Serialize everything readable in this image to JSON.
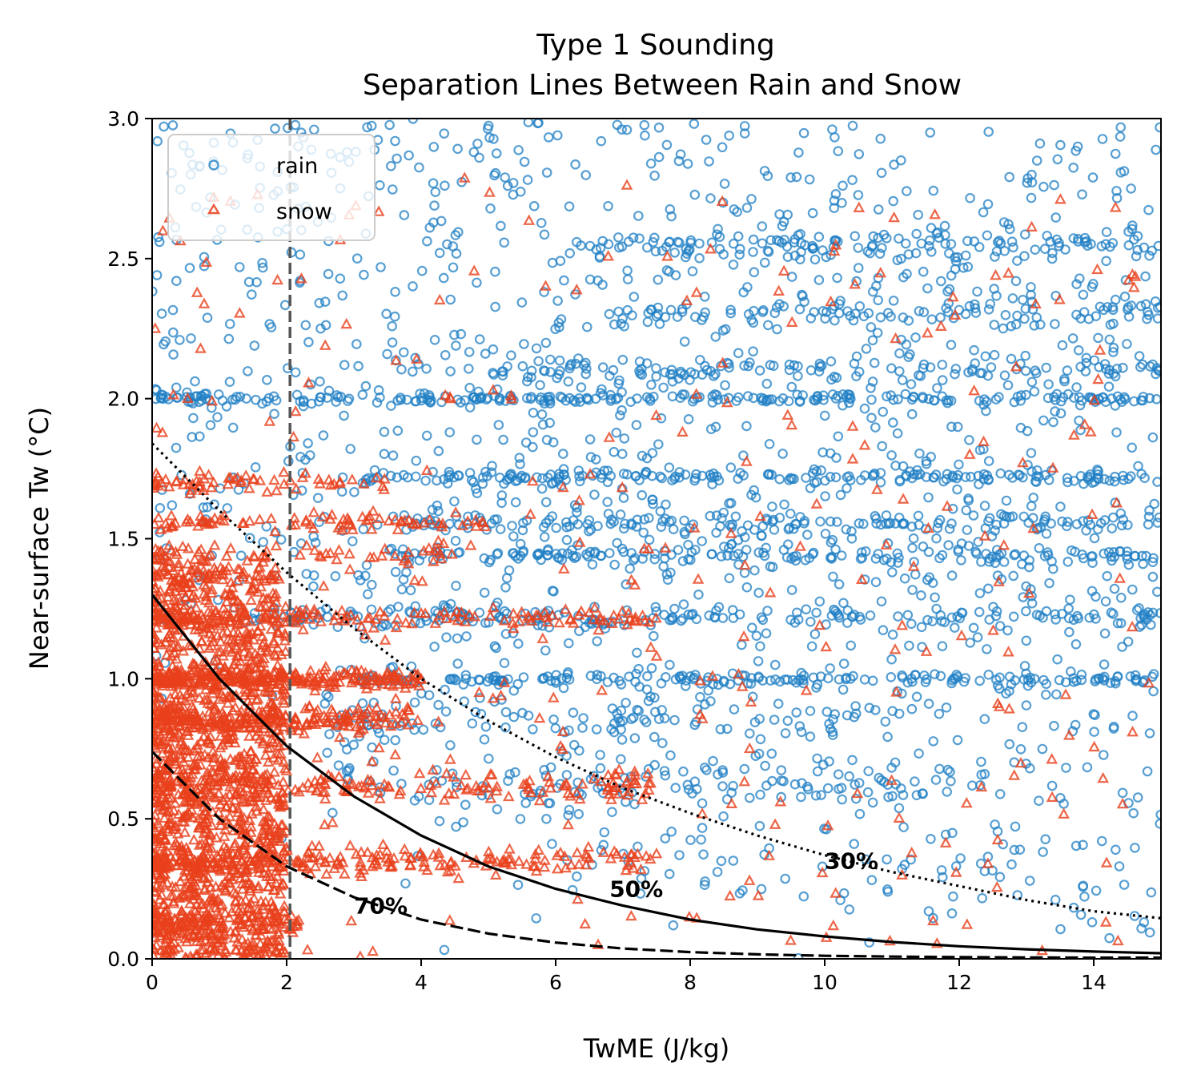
{
  "chart_data": {
    "type": "scatter",
    "title": "Type 1 Sounding",
    "subtitle": "Separation Lines Between Rain and Snow",
    "xlabel": "TwME (J/kg)",
    "ylabel": "Near-surface Tw (°C)",
    "xlim": [
      0,
      15
    ],
    "ylim": [
      0,
      3.0
    ],
    "xticks": [
      0,
      2,
      4,
      6,
      8,
      10,
      12,
      14
    ],
    "xtick_labels": [
      "0",
      "2",
      "4",
      "6",
      "8",
      "10",
      "12",
      "14"
    ],
    "yticks": [
      0,
      0.5,
      1.0,
      1.5,
      2.0,
      2.5,
      3.0
    ],
    "ytick_labels": [
      "0.0",
      "0.5",
      "1.0",
      "1.5",
      "2.0",
      "2.5",
      "3.0"
    ],
    "grid": false,
    "legend": {
      "position": "top-left",
      "entries": [
        {
          "label": "rain",
          "marker": "circle",
          "color": "#1f7fc4"
        },
        {
          "label": "snow",
          "marker": "triangle",
          "color": "#e8401c"
        }
      ]
    },
    "vertical_line": {
      "x": 2.05,
      "style": "dashed",
      "color": "#555555"
    },
    "curves": [
      {
        "label": "30%",
        "style": "dotted",
        "color": "#000000",
        "points": [
          [
            0,
            1.84
          ],
          [
            1,
            1.6
          ],
          [
            2,
            1.38
          ],
          [
            3,
            1.18
          ],
          [
            4,
            1.0
          ],
          [
            5,
            0.85
          ],
          [
            6,
            0.72
          ],
          [
            7,
            0.61
          ],
          [
            8,
            0.52
          ],
          [
            9,
            0.44
          ],
          [
            10,
            0.37
          ],
          [
            11,
            0.31
          ],
          [
            12,
            0.26
          ],
          [
            13,
            0.21
          ],
          [
            14,
            0.17
          ],
          [
            15,
            0.145
          ]
        ],
        "label_at": [
          10.0,
          0.35
        ]
      },
      {
        "label": "50%",
        "style": "solid",
        "color": "#000000",
        "points": [
          [
            0,
            1.3
          ],
          [
            1,
            1.0
          ],
          [
            2,
            0.76
          ],
          [
            3,
            0.58
          ],
          [
            4,
            0.44
          ],
          [
            5,
            0.33
          ],
          [
            6,
            0.25
          ],
          [
            7,
            0.19
          ],
          [
            8,
            0.14
          ],
          [
            9,
            0.105
          ],
          [
            10,
            0.08
          ],
          [
            11,
            0.06
          ],
          [
            12,
            0.045
          ],
          [
            13,
            0.034
          ],
          [
            14,
            0.026
          ],
          [
            15,
            0.02
          ]
        ],
        "label_at": [
          6.8,
          0.25
        ]
      },
      {
        "label": "70%",
        "style": "dashed",
        "color": "#000000",
        "points": [
          [
            0,
            0.74
          ],
          [
            1,
            0.5
          ],
          [
            2,
            0.33
          ],
          [
            3,
            0.22
          ],
          [
            4,
            0.14
          ],
          [
            5,
            0.09
          ],
          [
            6,
            0.058
          ],
          [
            7,
            0.037
          ],
          [
            8,
            0.024
          ],
          [
            9,
            0.016
          ],
          [
            10,
            0.011
          ],
          [
            11,
            0.008
          ],
          [
            12,
            0.006
          ],
          [
            13,
            0.005
          ],
          [
            14,
            0.004
          ],
          [
            15,
            0.004
          ]
        ],
        "label_at": [
          3.0,
          0.19
        ]
      }
    ],
    "series": [
      {
        "name": "rain",
        "marker": "circle",
        "color": "#1f7fc4",
        "bands": [
          {
            "y": 2.55,
            "x_range": [
              6.5,
              15
            ],
            "count": 120,
            "spread": 0.025
          },
          {
            "y": 2.3,
            "x_range": [
              6.0,
              15
            ],
            "count": 90,
            "spread": 0.03
          },
          {
            "y": 2.1,
            "x_range": [
              5.0,
              15
            ],
            "count": 120,
            "spread": 0.025
          },
          {
            "y": 2.0,
            "x_range": [
              0,
              15
            ],
            "count": 220,
            "spread": 0.01
          },
          {
            "y": 1.72,
            "x_range": [
              3.0,
              15
            ],
            "count": 170,
            "spread": 0.012
          },
          {
            "y": 1.56,
            "x_range": [
              3.5,
              15
            ],
            "count": 150,
            "spread": 0.02
          },
          {
            "y": 1.44,
            "x_range": [
              3.5,
              15
            ],
            "count": 150,
            "spread": 0.02
          },
          {
            "y": 1.22,
            "x_range": [
              1.5,
              15
            ],
            "count": 170,
            "spread": 0.02
          },
          {
            "y": 1.0,
            "x_range": [
              3.0,
              15
            ],
            "count": 170,
            "spread": 0.012
          },
          {
            "y": 0.86,
            "x_range": [
              3.0,
              12
            ],
            "count": 80,
            "spread": 0.04
          },
          {
            "y": 0.62,
            "x_range": [
              4.0,
              12
            ],
            "count": 60,
            "spread": 0.04
          }
        ],
        "scatter_count": 1700
      },
      {
        "name": "snow",
        "marker": "triangle",
        "color": "#e8401c",
        "bands": [
          {
            "y": 1.7,
            "x_range": [
              0,
              3.5
            ],
            "count": 60,
            "spread": 0.02
          },
          {
            "y": 1.56,
            "x_range": [
              0,
              5.0
            ],
            "count": 80,
            "spread": 0.02
          },
          {
            "y": 1.44,
            "x_range": [
              0,
              4.5
            ],
            "count": 70,
            "spread": 0.02
          },
          {
            "y": 1.22,
            "x_range": [
              0,
              7.5
            ],
            "count": 140,
            "spread": 0.02
          },
          {
            "y": 1.0,
            "x_range": [
              0,
              4.0
            ],
            "count": 260,
            "spread": 0.02
          },
          {
            "y": 0.86,
            "x_range": [
              0,
              4.0
            ],
            "count": 200,
            "spread": 0.03
          },
          {
            "y": 0.62,
            "x_range": [
              0,
              7.5
            ],
            "count": 180,
            "spread": 0.03
          },
          {
            "y": 0.35,
            "x_range": [
              0,
              7.5
            ],
            "count": 220,
            "spread": 0.03
          },
          {
            "y": 0.12,
            "x_range": [
              0,
              2.2
            ],
            "count": 120,
            "spread": 0.03
          }
        ],
        "dense_region": {
          "x_max": 2.0,
          "y_max": 1.4,
          "count": 1400
        },
        "scatter_count": 300
      }
    ]
  }
}
